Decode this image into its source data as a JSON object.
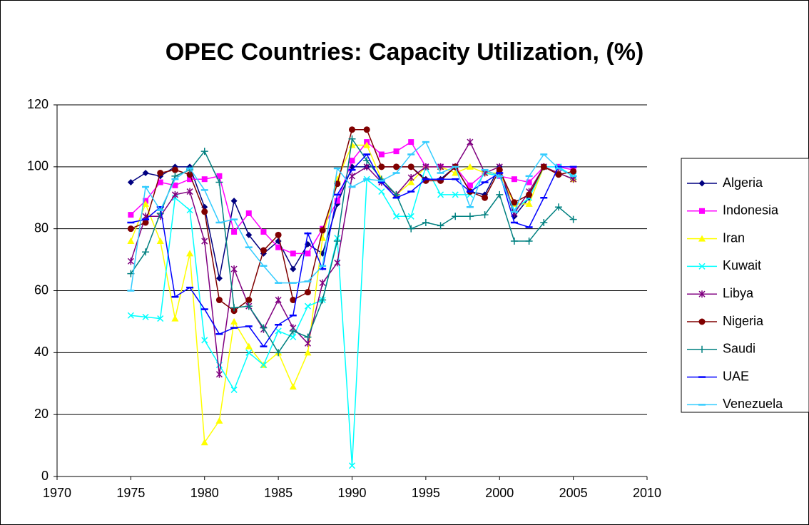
{
  "chart_data": {
    "type": "line",
    "title": "OPEC Countries: Capacity Utilization, (%)",
    "x": [
      1975,
      1976,
      1977,
      1978,
      1979,
      1980,
      1981,
      1982,
      1983,
      1984,
      1985,
      1986,
      1987,
      1988,
      1989,
      1990,
      1991,
      1992,
      1993,
      1994,
      1995,
      1996,
      1997,
      1998,
      1999,
      2000,
      2001,
      2002,
      2003,
      2004,
      2005
    ],
    "xlim": [
      1970,
      2010
    ],
    "xticks": [
      1970,
      1975,
      1980,
      1985,
      1990,
      1995,
      2000,
      2005,
      2010
    ],
    "ylim": [
      0,
      120
    ],
    "yticks": [
      0,
      20,
      40,
      60,
      80,
      100,
      120
    ],
    "grid": true,
    "legend": "right",
    "series": [
      {
        "name": "Algeria",
        "color": "#000080",
        "marker": "diamond",
        "values": [
          95,
          98,
          97,
          100,
          100,
          87,
          64,
          89,
          78,
          72,
          76,
          67,
          75,
          72,
          88,
          100,
          100,
          100,
          100,
          100,
          96,
          96,
          100,
          92,
          91,
          100,
          84,
          90,
          100,
          98,
          96
        ]
      },
      {
        "name": "Indonesia",
        "color": "#ff00ff",
        "marker": "square",
        "values": [
          84.5,
          89,
          95,
          94,
          96,
          96,
          97,
          79,
          85,
          79,
          74,
          72,
          72,
          80,
          89,
          102,
          108,
          104,
          105,
          108,
          100,
          100,
          100,
          94,
          98,
          97,
          96,
          95,
          100,
          100,
          99
        ]
      },
      {
        "name": "Iran",
        "color": "#ffff00",
        "marker": "triangle",
        "values": [
          76,
          88,
          76,
          51,
          72,
          11,
          18,
          50,
          42,
          36,
          40,
          29,
          40,
          77,
          96,
          107,
          107,
          96,
          91,
          95,
          100,
          100,
          98,
          100,
          98,
          98,
          88,
          88,
          100,
          98,
          96
        ]
      },
      {
        "name": "Kuwait",
        "color": "#00ffff",
        "marker": "x",
        "values": [
          52,
          51.5,
          51,
          90,
          86,
          44,
          36,
          28,
          40,
          36,
          47,
          45,
          55,
          57,
          77,
          3.5,
          96,
          92,
          84,
          84,
          100,
          91,
          91,
          91,
          98,
          97,
          86,
          90,
          100,
          100,
          97
        ]
      },
      {
        "name": "Libya",
        "color": "#800080",
        "marker": "star",
        "values": [
          69.5,
          84,
          84,
          91,
          92,
          76,
          33,
          67,
          55,
          47.5,
          57,
          48,
          43,
          62.5,
          69,
          97,
          100,
          95,
          91,
          96.5,
          100,
          100,
          100,
          108,
          98,
          100,
          85,
          92,
          100,
          98,
          96
        ]
      },
      {
        "name": "Nigeria",
        "color": "#800000",
        "marker": "circle",
        "values": [
          80,
          82,
          98,
          99,
          97.5,
          85.5,
          57,
          53.5,
          57,
          73,
          78,
          57,
          59.5,
          79.5,
          94.5,
          112,
          112,
          100,
          100,
          100,
          95.5,
          95.5,
          100,
          92,
          90,
          99,
          88.5,
          91,
          100,
          97.5,
          98.5
        ]
      },
      {
        "name": "Saudi",
        "color": "#008080",
        "marker": "plus",
        "values": [
          65.5,
          72.5,
          85,
          97,
          99,
          105,
          95,
          54.5,
          55,
          48,
          40,
          47,
          45,
          57,
          76,
          109,
          102,
          96,
          91,
          80,
          82,
          81,
          84,
          84,
          84.5,
          91,
          76,
          76,
          82,
          87,
          83
        ]
      },
      {
        "name": "UAE",
        "color": "#0000ff",
        "marker": "dash",
        "values": [
          82,
          83,
          87,
          58,
          61,
          54,
          46,
          48,
          48.5,
          42,
          49,
          52,
          78.5,
          67,
          91,
          99,
          104,
          95,
          90,
          92,
          96,
          96,
          96,
          92,
          95,
          98,
          82,
          80.5,
          90,
          100,
          100
        ]
      },
      {
        "name": "Venezuela",
        "color": "#33ccff",
        "marker": "dash",
        "values": [
          60,
          93.5,
          86,
          96,
          99.5,
          92.5,
          82,
          83,
          74,
          68,
          62.5,
          62.5,
          63,
          68,
          99.5,
          93.5,
          96,
          95.5,
          98,
          104,
          108,
          98,
          100,
          87,
          99,
          97,
          85.5,
          97,
          104,
          99.5,
          97
        ]
      }
    ]
  }
}
